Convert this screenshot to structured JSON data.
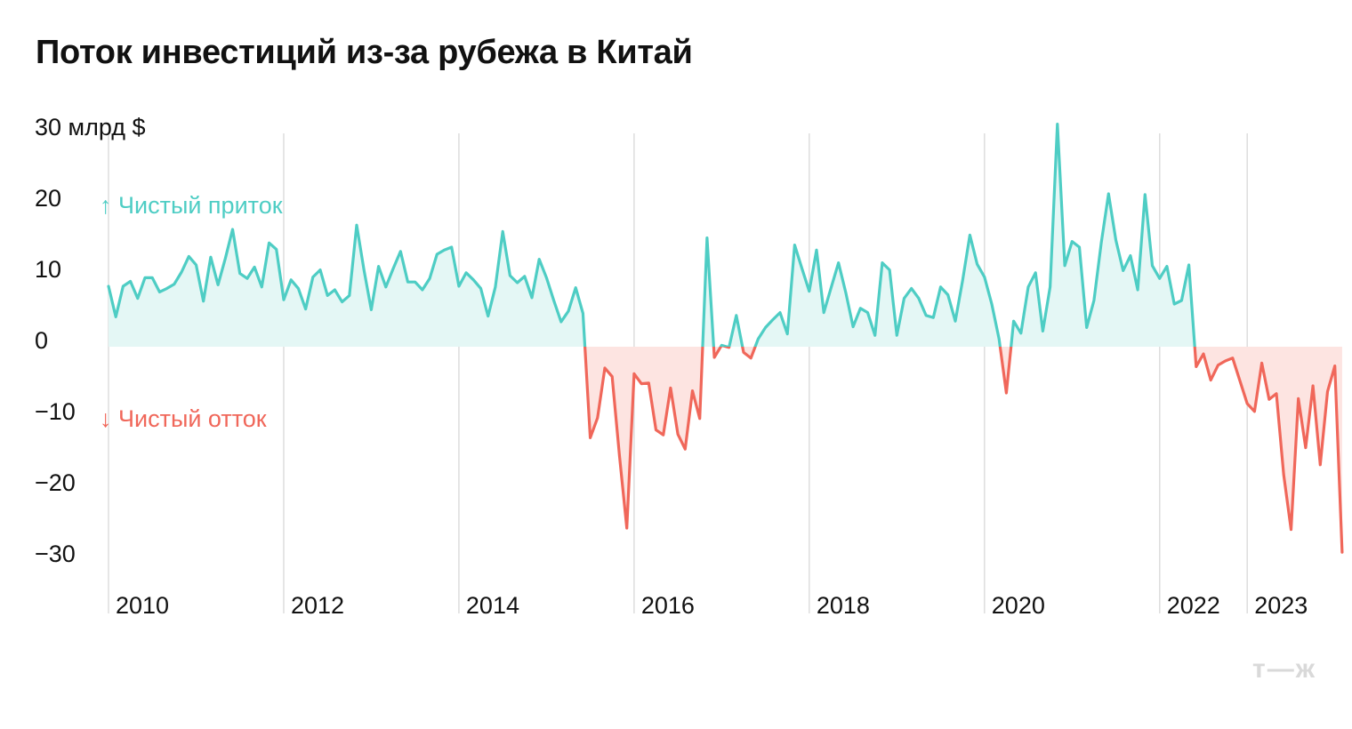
{
  "title": "Поток инвестиций из-за рубежа в Китай",
  "logo": "т—ж",
  "colors": {
    "inflow": "#4ecdc4",
    "outflow": "#f0675a",
    "inflow_fill": "#e4f7f5",
    "outflow_fill": "#fde4e1",
    "grid": "#dddddd"
  },
  "chart_data": {
    "type": "area",
    "title": "Поток инвестиций из-за рубежа в Китай",
    "ylabel": "30 млрд $",
    "ylim": [
      -31.5,
      30
    ],
    "yticks": [
      30,
      20,
      10,
      0,
      -10,
      -20,
      -30
    ],
    "ytick_labels": [
      "30 млрд $",
      "20",
      "10",
      "0",
      "−10",
      "−20",
      "−30"
    ],
    "xlim": [
      2010,
      2023.8
    ],
    "xticks": [
      {
        "x": 2010,
        "label": "2010"
      },
      {
        "x": 2012,
        "label": "2012"
      },
      {
        "x": 2014,
        "label": "2014"
      },
      {
        "x": 2016,
        "label": "2016"
      },
      {
        "x": 2018,
        "label": "2018"
      },
      {
        "x": 2020,
        "label": "2020"
      },
      {
        "x": 2022,
        "label": "2022"
      },
      {
        "x": 2023,
        "label": "2023"
      }
    ],
    "annotations": [
      {
        "text": "↑ Чистый приток",
        "x": 2010,
        "y": 20,
        "series": "inflow"
      },
      {
        "text": "↓ Чистый отток",
        "x": 2010,
        "y": -10,
        "series": "outflow"
      }
    ],
    "series": [
      {
        "start": 2010.0,
        "step": 0.0833333,
        "values": [
          8.5,
          4.2,
          8.5,
          9.2,
          6.8,
          9.7,
          9.7,
          7.7,
          8.2,
          8.8,
          10.5,
          12.7,
          11.5,
          6.4,
          12.6,
          8.7,
          12.4,
          16.5,
          10.3,
          9.6,
          11.2,
          8.4,
          14.6,
          13.7,
          6.6,
          9.4,
          8.2,
          5.3,
          9.8,
          10.8,
          7.2,
          8.0,
          6.3,
          7.2,
          17.1,
          10.8,
          5.2,
          11.3,
          8.4,
          11.0,
          13.4,
          9.1,
          9.1,
          8.0,
          9.6,
          13.0,
          13.6,
          14.0,
          8.5,
          10.4,
          9.4,
          8.2,
          4.3,
          8.4,
          16.2,
          10.0,
          9.0,
          9.9,
          6.9,
          12.3,
          9.7,
          6.5,
          3.5,
          5.0,
          8.3,
          4.7,
          -12.8,
          -10.0,
          -3.0,
          -4.2,
          -15.4,
          -25.5,
          -3.8,
          -5.2,
          -5.1,
          -11.7,
          -12.4,
          -5.8,
          -12.3,
          -14.4,
          -6.2,
          -10.1,
          15.3,
          -1.5,
          0.2,
          -0.1,
          4.4,
          -0.8,
          -1.6,
          1.1,
          2.7,
          3.8,
          4.8,
          1.8,
          14.3,
          11.0,
          7.8,
          13.6,
          4.8,
          8.3,
          11.8,
          7.6,
          2.8,
          5.4,
          4.8,
          1.6,
          11.8,
          10.8,
          1.6,
          6.8,
          8.2,
          6.8,
          4.4,
          4.1,
          8.4,
          7.3,
          3.6,
          9.3,
          15.7,
          11.6,
          9.8,
          6.0,
          1.1,
          -6.5,
          3.6,
          1.9,
          8.4,
          10.4,
          2.2,
          8.4,
          31.3,
          11.4,
          14.8,
          14.0,
          2.7,
          6.5,
          14.6,
          21.5,
          15.0,
          10.7,
          12.8,
          8.0,
          21.4,
          11.4,
          9.6,
          11.3,
          6.0,
          6.5,
          11.5,
          -2.8,
          -1.0,
          -4.7,
          -2.6,
          -2.0,
          -1.6,
          -4.8,
          -8.0,
          -9.1,
          -2.3,
          -7.4,
          -6.6,
          -18.0,
          -25.7,
          -7.3,
          -14.2,
          -5.5,
          -16.6,
          -6.3,
          -2.7,
          -28.9
        ]
      }
    ]
  }
}
